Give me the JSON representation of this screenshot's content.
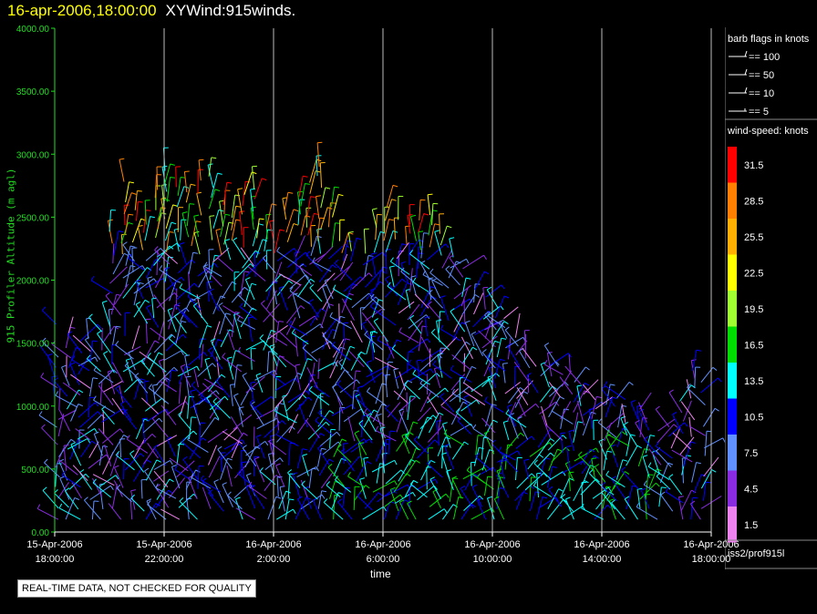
{
  "header": {
    "timestamp": "16-apr-2006,18:00:00",
    "product": "XYWind:915winds."
  },
  "axis": {
    "ylabel": "915 Profiler Altitude (m agl)",
    "xlabel": "time"
  },
  "barb_legend": {
    "title": "barb flags in knots",
    "items": [
      "== 100",
      "== 50",
      "== 10",
      "== 5"
    ]
  },
  "speed_legend": {
    "title": "wind-speed: knots",
    "bins": [
      {
        "label": "31.5",
        "color": "#ff0000"
      },
      {
        "label": "28.5",
        "color": "#ff8000"
      },
      {
        "label": "25.5",
        "color": "#ffb000"
      },
      {
        "label": "22.5",
        "color": "#ffff00"
      },
      {
        "label": "19.5",
        "color": "#a0ff30"
      },
      {
        "label": "16.5",
        "color": "#00dd00"
      },
      {
        "label": "13.5",
        "color": "#00ffff"
      },
      {
        "label": "10.5",
        "color": "#0000ff"
      },
      {
        "label": "7.5",
        "color": "#6090ff"
      },
      {
        "label": "4.5",
        "color": "#8a2be2"
      },
      {
        "label": "1.5",
        "color": "#ee82ee"
      }
    ]
  },
  "station": "iss2/prof915l",
  "quality_note": "REAL-TIME DATA, NOT CHECKED FOR QUALITY",
  "chart_data": {
    "type": "scatter",
    "title": "XYWind:915winds.",
    "xlabel": "time",
    "ylabel": "915 Profiler Altitude (m agl)",
    "ylim": [
      0,
      4000
    ],
    "yticks": [
      "0.00",
      "500.00",
      "1000.00",
      "1500.00",
      "2000.00",
      "2500.00",
      "3000.00",
      "3500.00",
      "4000.00"
    ],
    "xlim": [
      "15-Apr-2006 18:00:00",
      "16-Apr-2006 18:00:00"
    ],
    "xticks": [
      {
        "date": "15-Apr-2006",
        "time": "18:00:00"
      },
      {
        "date": "15-Apr-2006",
        "time": "22:00:00"
      },
      {
        "date": "16-Apr-2006",
        "time": "2:00:00"
      },
      {
        "date": "16-Apr-2006",
        "time": "6:00:00"
      },
      {
        "date": "16-Apr-2006",
        "time": "10:00:00"
      },
      {
        "date": "16-Apr-2006",
        "time": "14:00:00"
      },
      {
        "date": "16-Apr-2006",
        "time": "18:00:00"
      }
    ],
    "grid": "vertical lines at x ticks",
    "legend": "right",
    "time_step_hours": 0.4,
    "barb_columns": [
      {
        "hour": 0.4,
        "top_m": 1650
      },
      {
        "hour": 1.6,
        "top_m": 1500
      },
      {
        "hour": 2.4,
        "top_m": 2950
      },
      {
        "hour": 3.2,
        "top_m": 2450
      },
      {
        "hour": 4.0,
        "top_m": 2950
      },
      {
        "hour": 4.8,
        "top_m": 2700
      },
      {
        "hour": 5.6,
        "top_m": 2950
      },
      {
        "hour": 6.4,
        "top_m": 2500
      },
      {
        "hour": 7.2,
        "top_m": 2800
      },
      {
        "hour": 8.0,
        "top_m": 2300
      },
      {
        "hour": 8.8,
        "top_m": 2700
      },
      {
        "hour": 9.6,
        "top_m": 3000
      },
      {
        "hour": 10.4,
        "top_m": 2350
      },
      {
        "hour": 11.2,
        "top_m": 2200
      },
      {
        "hour": 12.0,
        "top_m": 2600
      },
      {
        "hour": 12.8,
        "top_m": 2450
      },
      {
        "hour": 13.6,
        "top_m": 2600
      },
      {
        "hour": 14.4,
        "top_m": 2300
      },
      {
        "hour": 15.2,
        "top_m": 2000
      },
      {
        "hour": 16.0,
        "top_m": 1850
      },
      {
        "hour": 16.8,
        "top_m": 1650
      },
      {
        "hour": 17.6,
        "top_m": 1400
      },
      {
        "hour": 18.4,
        "top_m": 1400
      },
      {
        "hour": 19.2,
        "top_m": 1200
      },
      {
        "hour": 20.0,
        "top_m": 1050
      },
      {
        "hour": 20.8,
        "top_m": 1100
      },
      {
        "hour": 21.6,
        "top_m": 900
      },
      {
        "hour": 22.4,
        "top_m": 800
      },
      {
        "hour": 23.2,
        "top_m": 1300
      }
    ],
    "max_speed_kt": 33
  }
}
